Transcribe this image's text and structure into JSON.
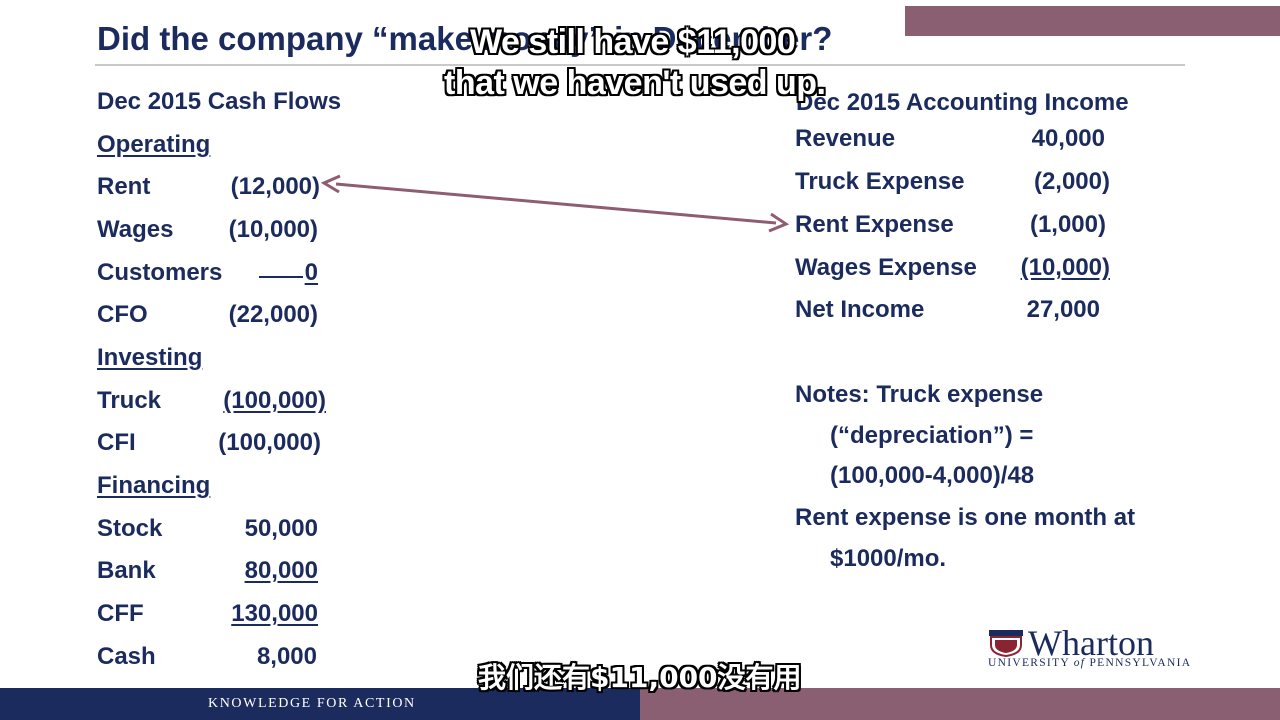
{
  "slide": {
    "title": "Did the company “make money” in December?",
    "colors": {
      "navy": "#1b2b5e",
      "maroon": "#8a5f72",
      "arrow": "#8e5d72"
    }
  },
  "cash_flows": {
    "heading": "Dec 2015 Cash Flows",
    "operating": {
      "label": "Operating",
      "rows": [
        {
          "label": "Rent",
          "value": "(12,000)"
        },
        {
          "label": "Wages",
          "value": "(10,000)"
        },
        {
          "label": "Customers",
          "value": "0"
        },
        {
          "label": "CFO",
          "value": "(22,000)"
        }
      ]
    },
    "investing": {
      "label": "Investing",
      "rows": [
        {
          "label": "Truck",
          "value": "(100,000)"
        },
        {
          "label": "CFI",
          "value": "(100,000)"
        }
      ]
    },
    "financing": {
      "label": "Financing",
      "rows": [
        {
          "label": "Stock",
          "value": "50,000"
        },
        {
          "label": "Bank",
          "value": "80,000"
        },
        {
          "label": "CFF",
          "value": "130,000"
        },
        {
          "label": "Cash",
          "value": "8,000"
        }
      ]
    }
  },
  "income": {
    "heading": "Dec 2015 Accounting Income",
    "rows": [
      {
        "label": "Revenue",
        "value": "40,000"
      },
      {
        "label": "Truck Expense",
        "value": "(2,000)"
      },
      {
        "label": "Rent Expense",
        "value": "(1,000)"
      },
      {
        "label": "Wages Expense",
        "value": "(10,000)"
      },
      {
        "label": "Net Income",
        "value": "27,000"
      }
    ]
  },
  "notes": {
    "line1": "Notes: Truck expense",
    "line2": "(“depreciation”) =",
    "line3": "(100,000-4,000)/48",
    "line4": "Rent expense is one month at",
    "line5": "$1000/mo."
  },
  "logo": {
    "name": "Wharton",
    "subtitle_a": "UNIVERSITY ",
    "subtitle_of": "of",
    "subtitle_b": " PENNSYLVANIA"
  },
  "footer": {
    "tagline": "KNOWLEDGE FOR ACTION"
  },
  "captions": {
    "en_line1": "We still have $11,000",
    "en_line2": "that we haven't used up.",
    "zh": "我们还有$11,000没有用"
  }
}
